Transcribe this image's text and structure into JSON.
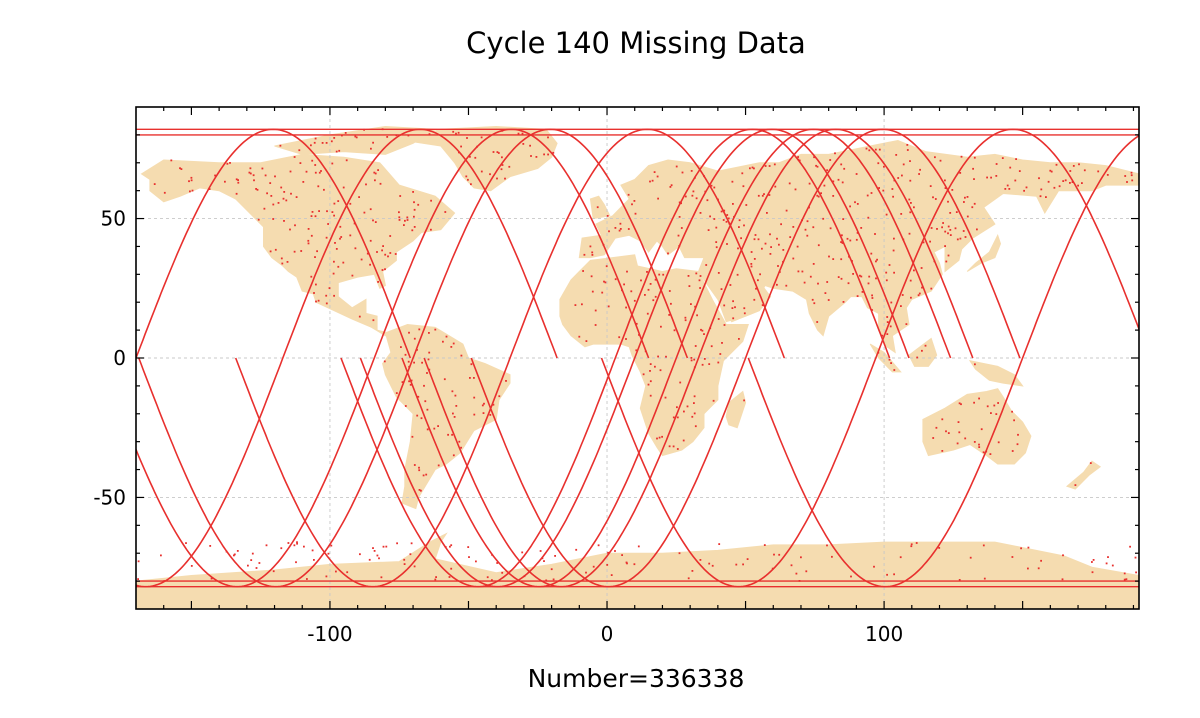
{
  "title": "Cycle 140 Missing Data",
  "footer_label": "Number=336338",
  "colors": {
    "land": "#f5dcb0",
    "track": "#e8302e",
    "grid": "#c8c8c8",
    "axis": "#000000"
  },
  "map": {
    "projection": "equirectangular",
    "lon_range": [
      -170,
      192
    ],
    "lat_range": [
      -90,
      90
    ],
    "x_ticks": [
      -100,
      0,
      100
    ],
    "x_tick_labels": [
      "-100",
      "0",
      "100"
    ],
    "y_ticks": [
      50,
      0,
      -50
    ],
    "y_tick_labels": [
      "50",
      "0",
      "-50"
    ],
    "grid": true,
    "grid_style": "dashed"
  },
  "chart_data": {
    "type": "scatter",
    "title": "Cycle 140 Missing Data",
    "xlabel": "",
    "ylabel": "",
    "xlim": [
      -170,
      192
    ],
    "ylim": [
      -90,
      90
    ],
    "count": 336338,
    "ground_track_equator_crossings_lon": [
      -170,
      -117,
      -84,
      -70,
      -35,
      3,
      10,
      25,
      33,
      50,
      97,
      150
    ]
  }
}
